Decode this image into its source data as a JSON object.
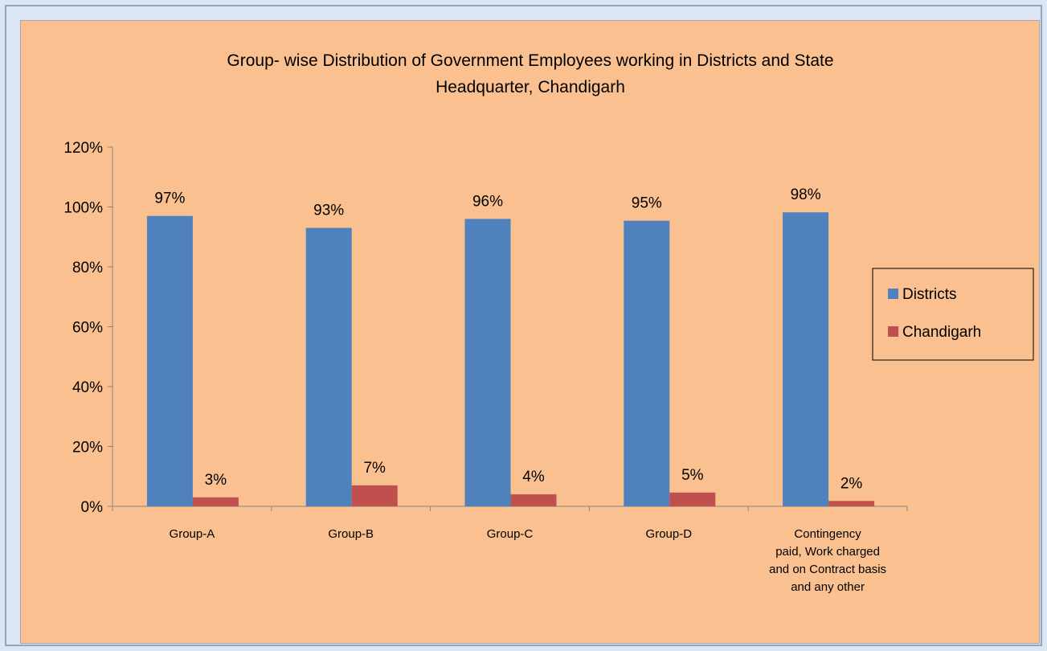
{
  "chart_data": {
    "type": "bar",
    "title": "Group- wise Distribution of Government Employees working in Districts and State Headquarter, Chandigarh",
    "title_lines": [
      "Group- wise Distribution of Government Employees working in Districts and State",
      "Headquarter, Chandigarh"
    ],
    "categories": [
      "Group-A",
      "Group-B",
      "Group-C",
      "Group-D",
      "Contingency paid, Work charged and on Contract basis and any other"
    ],
    "category_lines": [
      [
        "Group-A"
      ],
      [
        "Group-B"
      ],
      [
        "Group-C"
      ],
      [
        "Group-D"
      ],
      [
        "Contingency",
        "paid, Work charged",
        "and on Contract basis",
        "and any other"
      ]
    ],
    "series": [
      {
        "name": "Districts",
        "values": [
          97,
          93,
          96,
          95.4,
          98.2
        ],
        "labels": [
          "97%",
          "93%",
          "96%",
          "95%",
          "98%"
        ],
        "color": "#4f81bd"
      },
      {
        "name": "Chandigarh",
        "values": [
          3,
          7,
          4,
          4.6,
          1.8
        ],
        "labels": [
          "3%",
          "7%",
          "4%",
          "5%",
          "2%"
        ],
        "color": "#c0504d"
      }
    ],
    "ylim": [
      0,
      120
    ],
    "yticks": [
      0,
      20,
      40,
      60,
      80,
      100,
      120
    ],
    "ytick_labels": [
      "0%",
      "20%",
      "40%",
      "60%",
      "80%",
      "100%",
      "120%"
    ],
    "grid": false,
    "legend_position": "right",
    "xlabel": "",
    "ylabel": ""
  }
}
